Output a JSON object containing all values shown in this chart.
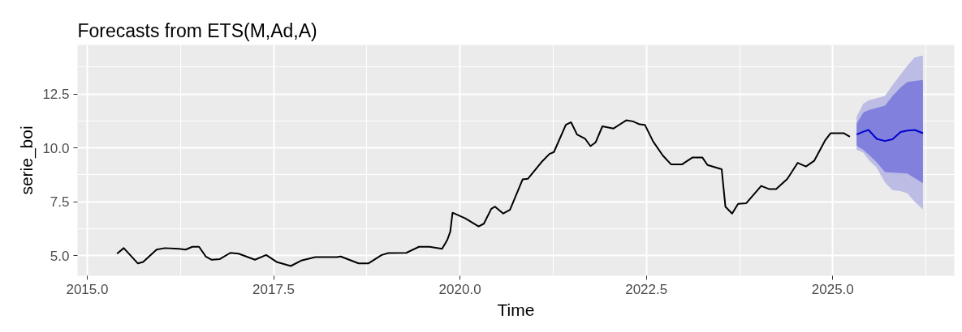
{
  "chart_data": {
    "type": "line",
    "title": "Forecasts from ETS(M,Ad,A)",
    "xlabel": "Time",
    "ylabel": "serie_boi",
    "xlim": [
      2014.87,
      2026.63
    ],
    "ylim": [
      4.08,
      14.77
    ],
    "xticks": [
      {
        "value": 2015,
        "label": "2015.0"
      },
      2017.5,
      {
        "value": 2020,
        "label": "2020.0"
      },
      2022.5,
      {
        "value": 2025,
        "label": "2025.0"
      }
    ],
    "yticks": [
      {
        "value": 5,
        "label": "5.0"
      },
      7.5,
      {
        "value": 10,
        "label": "10.0"
      },
      12.5
    ],
    "grid": true,
    "series": [
      {
        "color": "#000000",
        "x": [
          2015.4,
          2015.49,
          2015.68,
          2015.75,
          2015.93,
          2016.04,
          2016.23,
          2016.32,
          2016.41,
          2016.5,
          2016.59,
          2016.67,
          2016.78,
          2016.92,
          2017.03,
          2017.25,
          2017.4,
          2017.54,
          2017.73,
          2017.87,
          2018.06,
          2018.35,
          2018.4,
          2018.64,
          2018.77,
          2018.95,
          2019.04,
          2019.28,
          2019.45,
          2019.59,
          2019.76,
          2019.83,
          2019.87,
          2019.9,
          2020.07,
          2020.25,
          2020.32,
          2020.42,
          2020.47,
          2020.58,
          2020.67,
          2020.84,
          2020.91,
          2021.09,
          2021.2,
          2021.26,
          2021.42,
          2021.49,
          2021.57,
          2021.68,
          2021.75,
          2021.82,
          2021.91,
          2022.06,
          2022.23,
          2022.32,
          2022.41,
          2022.48,
          2022.59,
          2022.72,
          2022.83,
          2022.98,
          2023.12,
          2023.25,
          2023.32,
          2023.51,
          2023.56,
          2023.65,
          2023.73,
          2023.84,
          2024.04,
          2024.15,
          2024.24,
          2024.39,
          2024.53,
          2024.64,
          2024.75,
          2024.9,
          2024.97,
          2025.15,
          2025.23
        ],
        "values": [
          5.1,
          5.36,
          4.65,
          4.72,
          5.29,
          5.36,
          5.33,
          5.29,
          5.42,
          5.42,
          4.97,
          4.82,
          4.85,
          5.14,
          5.1,
          4.82,
          5.04,
          4.72,
          4.53,
          4.78,
          4.94,
          4.94,
          4.97,
          4.65,
          4.65,
          5.04,
          5.13,
          5.14,
          5.42,
          5.42,
          5.33,
          5.74,
          6.13,
          7.0,
          6.74,
          6.36,
          6.49,
          7.18,
          7.28,
          6.96,
          7.13,
          8.54,
          8.57,
          9.33,
          9.72,
          9.81,
          11.07,
          11.19,
          10.62,
          10.42,
          10.08,
          10.26,
          11.0,
          10.9,
          11.28,
          11.23,
          11.09,
          11.07,
          10.3,
          9.65,
          9.24,
          9.24,
          9.56,
          9.56,
          9.21,
          9.01,
          7.28,
          6.96,
          7.41,
          7.44,
          8.24,
          8.09,
          8.09,
          8.56,
          9.31,
          9.14,
          9.4,
          10.36,
          10.68,
          10.68,
          10.52
        ]
      },
      {
        "color": "#0000cc",
        "x": [
          2025.32,
          2025.41,
          2025.48,
          2025.59,
          2025.7,
          2025.8,
          2025.91,
          2026.0,
          2026.1,
          2026.21
        ],
        "values": [
          10.62,
          10.75,
          10.83,
          10.42,
          10.32,
          10.4,
          10.74,
          10.8,
          10.83,
          10.68
        ],
        "upper": [
          11.45,
          12.05,
          12.2,
          12.3,
          12.41,
          12.9,
          13.4,
          13.8,
          14.2,
          14.28
        ],
        "lower": [
          9.91,
          9.78,
          9.45,
          9.08,
          8.4,
          8.05,
          8.0,
          7.9,
          7.5,
          7.15
        ]
      },
      {
        "color": "#0000cc",
        "x": [
          2025.32,
          2025.41,
          2025.48,
          2025.59,
          2025.7,
          2025.8,
          2025.91,
          2026.0,
          2026.1,
          2026.21
        ],
        "values": [
          null,
          null,
          null,
          null,
          null,
          null,
          null,
          null,
          null,
          null
        ],
        "upper": [
          11.13,
          11.64,
          11.75,
          11.85,
          11.96,
          12.4,
          12.8,
          13.05,
          13.1,
          13.15
        ],
        "lower": [
          10.1,
          9.91,
          9.7,
          9.33,
          8.88,
          8.85,
          8.83,
          8.82,
          8.6,
          8.37
        ]
      }
    ]
  }
}
